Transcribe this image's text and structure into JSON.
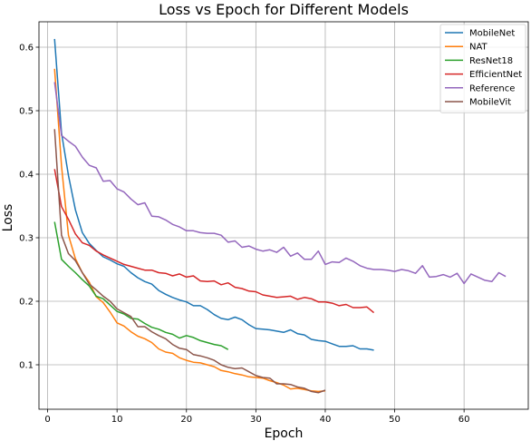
{
  "chart_data": {
    "type": "line",
    "title": "Loss vs Epoch for Different Models",
    "xlabel": "Epoch",
    "ylabel": "Loss",
    "xlim": [
      -1.25,
      69.25
    ],
    "ylim": [
      0.03,
      0.64
    ],
    "xticks": [
      0,
      10,
      20,
      30,
      40,
      50,
      60
    ],
    "yticks": [
      0.1,
      0.2,
      0.3,
      0.4,
      0.5,
      0.6
    ],
    "grid": true,
    "legend_position": "top-right",
    "series": [
      {
        "name": "MobileNet",
        "color": "#1f77b4",
        "x": [
          1,
          2,
          3,
          4,
          5,
          6,
          7,
          8,
          9,
          10,
          11,
          12,
          13,
          14,
          15,
          16,
          17,
          18,
          19,
          20,
          21,
          22,
          23,
          24,
          25,
          26,
          27,
          28,
          29,
          30,
          31,
          32,
          33,
          34,
          35,
          36,
          37,
          38,
          39,
          40,
          41,
          42,
          43,
          44,
          45,
          46,
          47
        ],
        "y": [
          0.613,
          0.465,
          0.398,
          0.344,
          0.308,
          0.291,
          0.28,
          0.27,
          0.265,
          0.259,
          0.255,
          0.245,
          0.237,
          0.231,
          0.227,
          0.217,
          0.211,
          0.206,
          0.202,
          0.199,
          0.193,
          0.193,
          0.187,
          0.179,
          0.173,
          0.171,
          0.175,
          0.171,
          0.163,
          0.157,
          0.156,
          0.155,
          0.153,
          0.151,
          0.155,
          0.149,
          0.147,
          0.14,
          0.138,
          0.137,
          0.133,
          0.129,
          0.129,
          0.13,
          0.125,
          0.125,
          0.123
        ]
      },
      {
        "name": "NAT",
        "color": "#ff7f0e",
        "x": [
          1,
          2,
          3,
          4,
          5,
          6,
          7,
          8,
          9,
          10,
          11,
          12,
          13,
          14,
          15,
          16,
          17,
          18,
          19,
          20,
          21,
          22,
          23,
          24,
          25,
          26,
          27,
          28,
          29,
          30,
          31,
          32,
          33,
          34,
          35,
          36,
          37,
          38,
          39,
          40
        ],
        "y": [
          0.566,
          0.413,
          0.304,
          0.267,
          0.245,
          0.23,
          0.207,
          0.198,
          0.183,
          0.166,
          0.161,
          0.152,
          0.145,
          0.141,
          0.135,
          0.125,
          0.12,
          0.118,
          0.111,
          0.107,
          0.104,
          0.103,
          0.1,
          0.097,
          0.091,
          0.089,
          0.086,
          0.084,
          0.081,
          0.08,
          0.079,
          0.075,
          0.072,
          0.068,
          0.062,
          0.063,
          0.061,
          0.059,
          0.058,
          0.059
        ]
      },
      {
        "name": "ResNet18",
        "color": "#2ca02c",
        "x": [
          1,
          2,
          3,
          4,
          5,
          6,
          7,
          8,
          9,
          10,
          11,
          12,
          13,
          14,
          15,
          16,
          17,
          18,
          19,
          20,
          21,
          22,
          23,
          24,
          25,
          26
        ],
        "y": [
          0.325,
          0.266,
          0.255,
          0.245,
          0.234,
          0.224,
          0.208,
          0.204,
          0.194,
          0.184,
          0.18,
          0.173,
          0.172,
          0.165,
          0.159,
          0.156,
          0.151,
          0.148,
          0.142,
          0.146,
          0.143,
          0.138,
          0.135,
          0.132,
          0.13,
          0.124
        ]
      },
      {
        "name": "EfficientNet",
        "color": "#d62728",
        "x": [
          1,
          2,
          3,
          4,
          5,
          6,
          7,
          8,
          9,
          10,
          11,
          12,
          13,
          14,
          15,
          16,
          17,
          18,
          19,
          20,
          21,
          22,
          23,
          24,
          25,
          26,
          27,
          28,
          29,
          30,
          31,
          32,
          33,
          34,
          35,
          36,
          37,
          38,
          39,
          40,
          41,
          42,
          43,
          44,
          45,
          46,
          47
        ],
        "y": [
          0.408,
          0.349,
          0.329,
          0.306,
          0.292,
          0.288,
          0.279,
          0.273,
          0.268,
          0.263,
          0.258,
          0.255,
          0.252,
          0.249,
          0.249,
          0.245,
          0.244,
          0.24,
          0.243,
          0.238,
          0.24,
          0.232,
          0.231,
          0.232,
          0.226,
          0.229,
          0.222,
          0.22,
          0.216,
          0.215,
          0.21,
          0.208,
          0.206,
          0.207,
          0.208,
          0.203,
          0.206,
          0.204,
          0.199,
          0.199,
          0.197,
          0.193,
          0.195,
          0.19,
          0.19,
          0.191,
          0.182
        ]
      },
      {
        "name": "Reference",
        "color": "#9467bd",
        "x": [
          1,
          2,
          3,
          4,
          5,
          6,
          7,
          8,
          9,
          10,
          11,
          12,
          13,
          14,
          15,
          16,
          17,
          18,
          19,
          20,
          21,
          22,
          23,
          24,
          25,
          26,
          27,
          28,
          29,
          30,
          31,
          32,
          33,
          34,
          35,
          36,
          37,
          38,
          39,
          40,
          41,
          42,
          43,
          44,
          45,
          46,
          47,
          48,
          49,
          50,
          51,
          52,
          53,
          54,
          55,
          56,
          57,
          58,
          59,
          60,
          61,
          62,
          63,
          64,
          65,
          66
        ],
        "y": [
          0.545,
          0.461,
          0.452,
          0.444,
          0.427,
          0.414,
          0.41,
          0.389,
          0.39,
          0.377,
          0.372,
          0.361,
          0.352,
          0.355,
          0.334,
          0.333,
          0.328,
          0.321,
          0.317,
          0.311,
          0.311,
          0.308,
          0.307,
          0.307,
          0.304,
          0.293,
          0.295,
          0.285,
          0.287,
          0.282,
          0.279,
          0.281,
          0.277,
          0.285,
          0.271,
          0.276,
          0.266,
          0.266,
          0.279,
          0.258,
          0.262,
          0.261,
          0.268,
          0.263,
          0.256,
          0.252,
          0.25,
          0.25,
          0.249,
          0.247,
          0.25,
          0.248,
          0.244,
          0.256,
          0.238,
          0.239,
          0.242,
          0.238,
          0.244,
          0.228,
          0.243,
          0.238,
          0.233,
          0.231,
          0.245,
          0.239
        ]
      },
      {
        "name": "MobileVit",
        "color": "#8c564b",
        "x": [
          1,
          2,
          3,
          4,
          5,
          6,
          7,
          8,
          9,
          10,
          11,
          12,
          13,
          14,
          15,
          16,
          17,
          18,
          19,
          20,
          21,
          22,
          23,
          24,
          25,
          26,
          27,
          28,
          29,
          30,
          31,
          32,
          33,
          34,
          35,
          36,
          37,
          38,
          39,
          40
        ],
        "y": [
          0.471,
          0.304,
          0.275,
          0.264,
          0.245,
          0.227,
          0.218,
          0.208,
          0.2,
          0.188,
          0.182,
          0.176,
          0.16,
          0.16,
          0.152,
          0.146,
          0.141,
          0.132,
          0.126,
          0.124,
          0.116,
          0.114,
          0.111,
          0.107,
          0.1,
          0.096,
          0.094,
          0.095,
          0.089,
          0.083,
          0.08,
          0.079,
          0.07,
          0.07,
          0.069,
          0.065,
          0.063,
          0.058,
          0.056,
          0.06
        ]
      }
    ]
  }
}
